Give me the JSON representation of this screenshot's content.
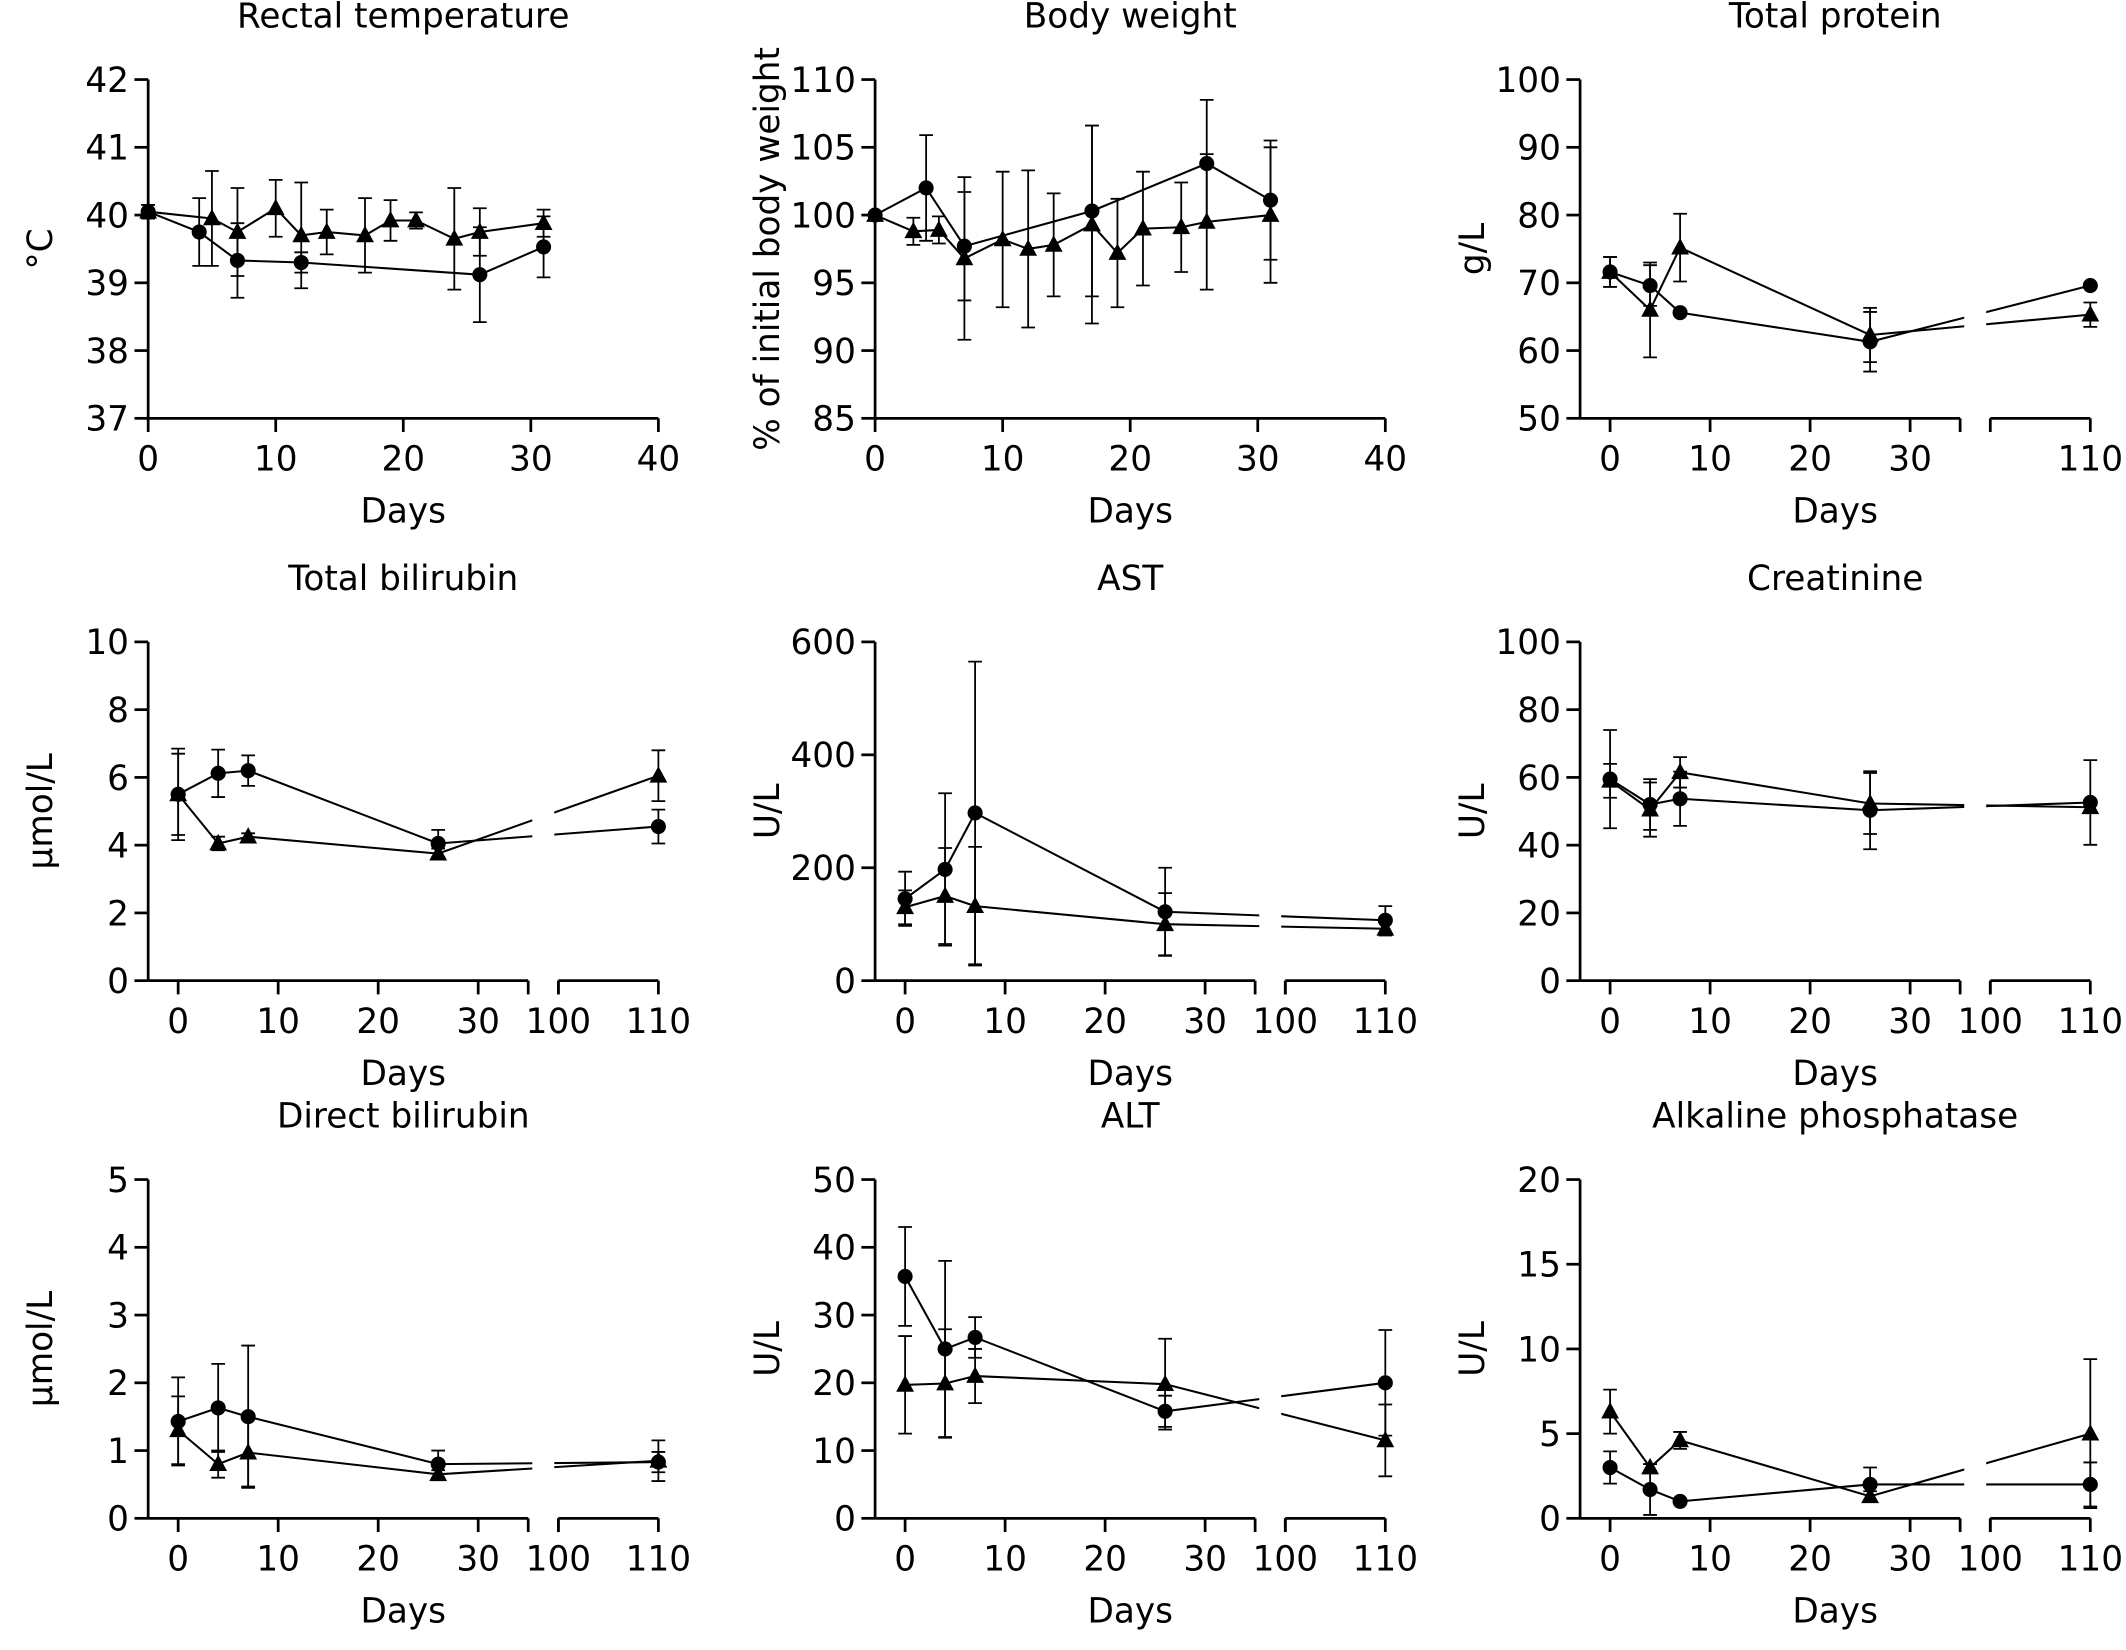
{
  "chart_data": [
    {
      "type": "line",
      "title": "Rectal temperature",
      "x_label": "Days",
      "y_label": "°C",
      "xlim": [
        0,
        40
      ],
      "xticks": [
        0,
        10,
        20,
        30,
        40
      ],
      "ylim": [
        37,
        42
      ],
      "yticks": [
        37,
        38,
        39,
        40,
        41,
        42
      ],
      "series": [
        {
          "marker": "circle",
          "color": "#000000",
          "x": [
            0,
            4,
            7,
            12,
            26,
            31
          ],
          "values": [
            40.05,
            39.75,
            39.33,
            39.3,
            39.12,
            39.53
          ],
          "errors": [
            0.1,
            0.5,
            0.55,
            0.15,
            0.7,
            0.45
          ]
        },
        {
          "marker": "triangle",
          "color": "#000000",
          "x": [
            0,
            5,
            7,
            10,
            12,
            14,
            17,
            19,
            21,
            24,
            26,
            31
          ],
          "values": [
            40.05,
            39.95,
            39.75,
            40.1,
            39.7,
            39.75,
            39.7,
            39.92,
            39.92,
            39.65,
            39.75,
            39.88
          ],
          "errors": [
            0.1,
            0.7,
            0.65,
            0.42,
            0.78,
            0.33,
            0.55,
            0.3,
            0.12,
            0.75,
            0.35,
            0.2
          ]
        }
      ]
    },
    {
      "type": "line",
      "title": "Body weight",
      "x_label": "Days",
      "y_label": "% of initial body weight",
      "xlim": [
        0,
        40
      ],
      "xticks": [
        0,
        10,
        20,
        30,
        40
      ],
      "ylim": [
        85,
        110
      ],
      "yticks": [
        85,
        90,
        95,
        100,
        105,
        110
      ],
      "series": [
        {
          "marker": "circle",
          "color": "#000000",
          "x": [
            0,
            4,
            7,
            17,
            26,
            31
          ],
          "values": [
            100,
            102,
            97.7,
            100.3,
            103.8,
            101.1
          ],
          "errors": [
            0,
            3.9,
            4,
            6.3,
            4.7,
            4.4
          ]
        },
        {
          "marker": "triangle",
          "color": "#000000",
          "x": [
            0,
            3,
            5,
            7,
            10,
            12,
            14,
            17,
            19,
            21,
            24,
            26,
            31
          ],
          "values": [
            100,
            98.8,
            98.9,
            96.8,
            98.2,
            97.5,
            97.8,
            99.3,
            97.2,
            99,
            99.1,
            99.5,
            100
          ],
          "errors": [
            0,
            1,
            1,
            6,
            5,
            5.8,
            3.8,
            7.3,
            4,
            4.2,
            3.3,
            5,
            5
          ]
        }
      ]
    },
    {
      "type": "line",
      "title": "Total protein",
      "x_label": "Days",
      "y_label": "g/L",
      "xlim": [
        -3,
        110
      ],
      "xbreak": [
        35,
        100
      ],
      "xticks": [
        0,
        10,
        20,
        30,
        110
      ],
      "ylim": [
        50,
        100
      ],
      "yticks": [
        50,
        60,
        70,
        80,
        90,
        100
      ],
      "series": [
        {
          "marker": "circle",
          "color": "#000000",
          "x": [
            0,
            4,
            7,
            26,
            110
          ],
          "values": [
            71.6,
            69.6,
            65.6,
            61.3,
            69.6
          ],
          "errors": [
            2.2,
            3,
            0,
            4.4,
            0
          ]
        },
        {
          "marker": "triangle",
          "color": "#000000",
          "x": [
            0,
            4,
            7,
            26,
            110
          ],
          "values": [
            71.6,
            66,
            75.2,
            62.3,
            65.3
          ],
          "errors": [
            2.2,
            7,
            5,
            4,
            1.8
          ]
        }
      ]
    },
    {
      "type": "line",
      "title": "Total bilirubin",
      "x_label": "Days",
      "y_label": "μmol/L",
      "xlim": [
        -3,
        110
      ],
      "xbreak": [
        35,
        100
      ],
      "xticks": [
        0,
        10,
        20,
        30,
        100,
        110
      ],
      "ylim": [
        0,
        10
      ],
      "yticks": [
        0,
        2,
        4,
        6,
        8,
        10
      ],
      "series": [
        {
          "marker": "circle",
          "color": "#000000",
          "x": [
            0,
            4,
            7,
            26,
            110
          ],
          "values": [
            5.5,
            6.12,
            6.2,
            4.05,
            4.55
          ],
          "errors": [
            1.35,
            0.7,
            0.45,
            0.4,
            0.5
          ]
        },
        {
          "marker": "triangle",
          "color": "#000000",
          "x": [
            0,
            4,
            7,
            26,
            110
          ],
          "values": [
            5.5,
            4.05,
            4.25,
            3.75,
            6.05
          ],
          "errors": [
            1.2,
            0.2,
            0.1,
            0.15,
            0.75
          ]
        }
      ]
    },
    {
      "type": "line",
      "title": "AST",
      "x_label": "Days",
      "y_label": "U/L",
      "xlim": [
        -3,
        110
      ],
      "xbreak": [
        35,
        100
      ],
      "xticks": [
        0,
        10,
        20,
        30,
        100,
        110
      ],
      "ylim": [
        0,
        600
      ],
      "yticks": [
        0,
        200,
        400,
        600
      ],
      "series": [
        {
          "marker": "circle",
          "color": "#000000",
          "x": [
            0,
            4,
            7,
            26,
            110
          ],
          "values": [
            145,
            197,
            297,
            122,
            107
          ],
          "errors": [
            48,
            135,
            268,
            78,
            25
          ]
        },
        {
          "marker": "triangle",
          "color": "#000000",
          "x": [
            0,
            4,
            7,
            26,
            110
          ],
          "values": [
            130,
            150,
            132,
            100,
            92
          ],
          "errors": [
            30,
            85,
            105,
            55,
            12
          ]
        }
      ]
    },
    {
      "type": "line",
      "title": "Creatinine",
      "x_label": "Days",
      "y_label": "U/L",
      "xlim": [
        -3,
        110
      ],
      "xbreak": [
        35,
        100
      ],
      "xticks": [
        0,
        10,
        20,
        30,
        100,
        110
      ],
      "ylim": [
        0,
        100
      ],
      "yticks": [
        0,
        20,
        40,
        60,
        80,
        100
      ],
      "series": [
        {
          "marker": "circle",
          "color": "#000000",
          "x": [
            0,
            4,
            7,
            26,
            110
          ],
          "values": [
            59.5,
            52,
            53.7,
            50.3,
            52.6
          ],
          "errors": [
            14.5,
            7.5,
            8,
            11.5,
            12.5
          ]
        },
        {
          "marker": "triangle",
          "color": "#000000",
          "x": [
            0,
            4,
            7,
            26,
            110
          ],
          "values": [
            59,
            50.5,
            61.5,
            52.3,
            51.2
          ],
          "errors": [
            5,
            8,
            4.5,
            9,
            1.5
          ]
        }
      ]
    },
    {
      "type": "line",
      "title": "Direct bilirubin",
      "x_label": "Days",
      "y_label": "μmol/L",
      "xlim": [
        -3,
        110
      ],
      "xbreak": [
        35,
        100
      ],
      "xticks": [
        0,
        10,
        20,
        30,
        100,
        110
      ],
      "ylim": [
        0,
        5
      ],
      "yticks": [
        0,
        1,
        2,
        3,
        4,
        5
      ],
      "series": [
        {
          "marker": "circle",
          "color": "#000000",
          "x": [
            0,
            4,
            7,
            26,
            110
          ],
          "values": [
            1.43,
            1.63,
            1.5,
            0.8,
            0.83
          ],
          "errors": [
            0.65,
            0.65,
            1.05,
            0.2,
            0.15
          ]
        },
        {
          "marker": "triangle",
          "color": "#000000",
          "x": [
            0,
            4,
            7,
            26,
            110
          ],
          "values": [
            1.3,
            0.8,
            0.97,
            0.65,
            0.85
          ],
          "errors": [
            0.5,
            0.2,
            0.5,
            0.06,
            0.3
          ]
        }
      ]
    },
    {
      "type": "line",
      "title": "ALT",
      "x_label": "Days",
      "y_label": "U/L",
      "xlim": [
        -3,
        110
      ],
      "xbreak": [
        35,
        100
      ],
      "xticks": [
        0,
        10,
        20,
        30,
        100,
        110
      ],
      "ylim": [
        0,
        50
      ],
      "yticks": [
        0,
        10,
        20,
        30,
        40,
        50
      ],
      "series": [
        {
          "marker": "circle",
          "color": "#000000",
          "x": [
            0,
            4,
            7,
            26,
            110
          ],
          "values": [
            35.7,
            25,
            26.7,
            15.8,
            20
          ],
          "errors": [
            7.3,
            13,
            3,
            2.3,
            7.8
          ]
        },
        {
          "marker": "triangle",
          "color": "#000000",
          "x": [
            0,
            4,
            7,
            26,
            110
          ],
          "values": [
            19.7,
            19.9,
            21,
            19.8,
            11.5
          ],
          "errors": [
            7.2,
            8,
            4,
            6.7,
            5.3
          ]
        }
      ]
    },
    {
      "type": "line",
      "title": "Alkaline phosphatase",
      "x_label": "Days",
      "y_label": "U/L",
      "xlim": [
        -3,
        110
      ],
      "xbreak": [
        35,
        100
      ],
      "xticks": [
        0,
        10,
        20,
        30,
        100,
        110
      ],
      "ylim": [
        0,
        20
      ],
      "yticks": [
        0,
        5,
        10,
        15,
        20
      ],
      "series": [
        {
          "marker": "circle",
          "color": "#000000",
          "x": [
            0,
            4,
            7,
            26,
            110
          ],
          "values": [
            3,
            1.7,
            1,
            2,
            2
          ],
          "errors": [
            0.95,
            1.5,
            0,
            1,
            1.3
          ]
        },
        {
          "marker": "triangle",
          "color": "#000000",
          "x": [
            0,
            4,
            7,
            26,
            110
          ],
          "values": [
            6.3,
            3,
            4.6,
            1.3,
            5
          ],
          "errors": [
            1.3,
            0.2,
            0.5,
            0.3,
            4.4
          ]
        }
      ]
    }
  ]
}
